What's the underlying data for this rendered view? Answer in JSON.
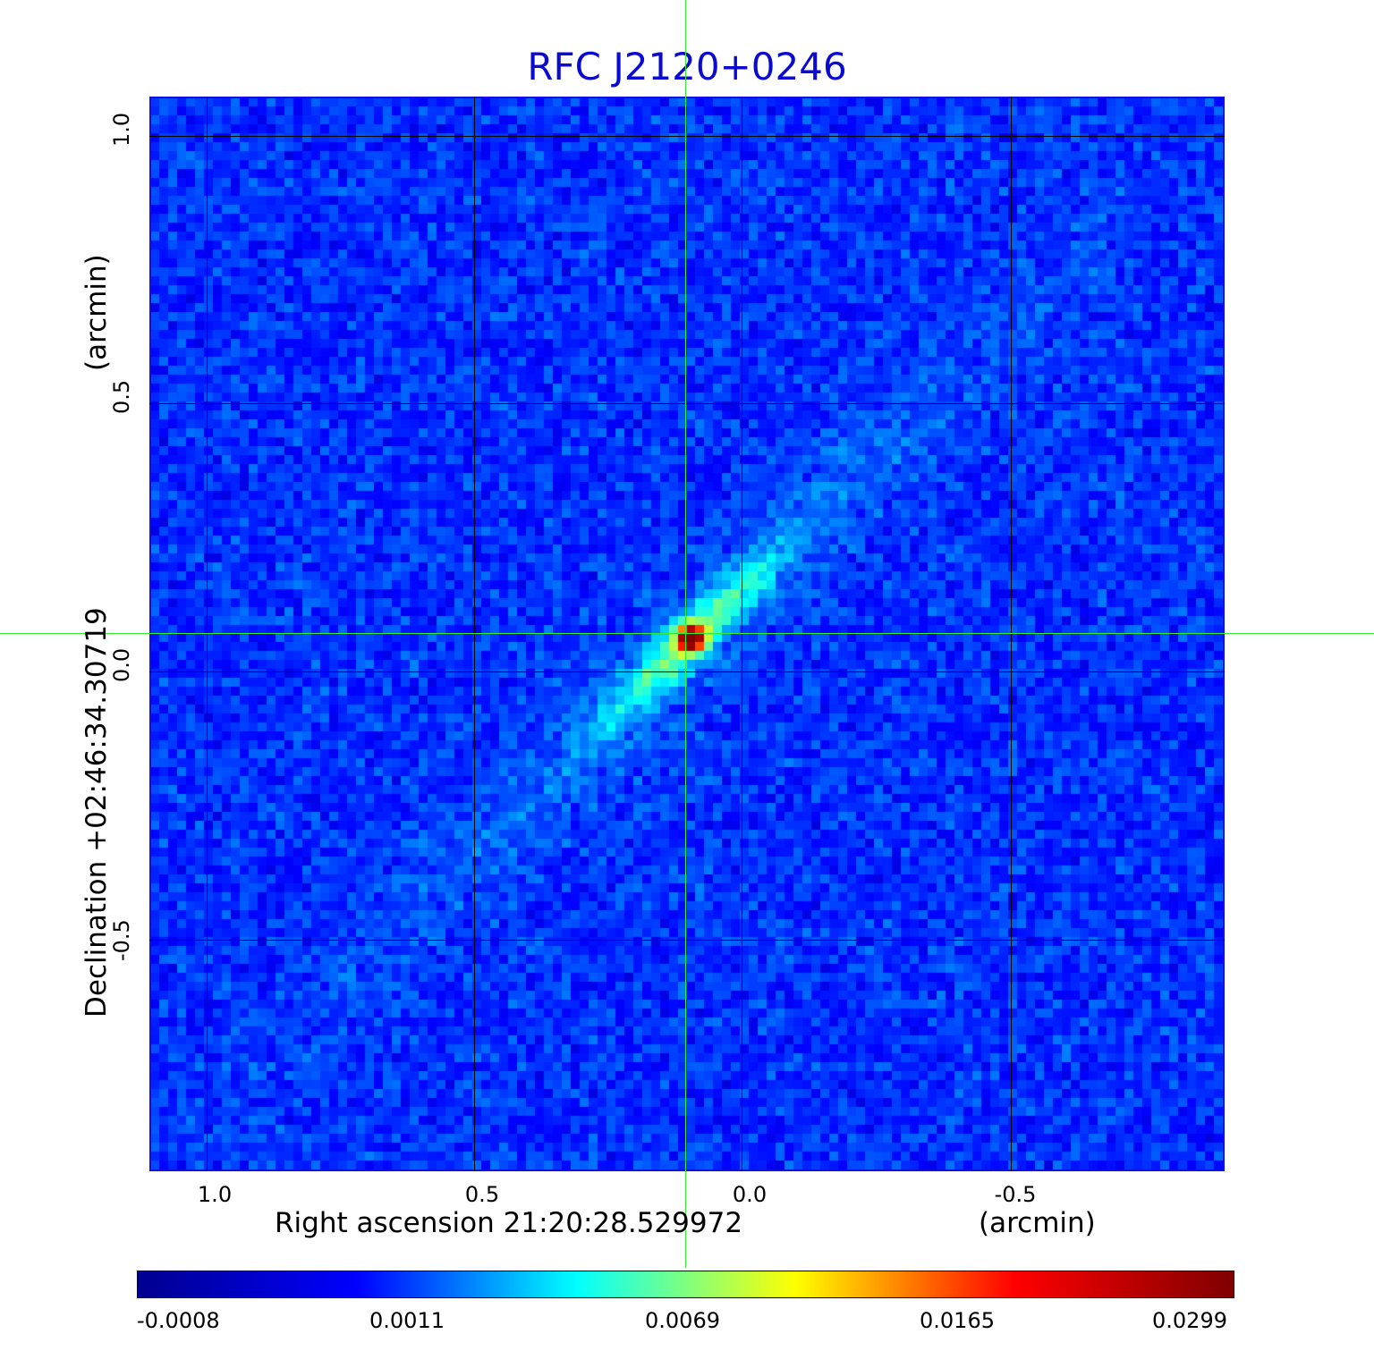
{
  "title": "RFC J2120+0246",
  "xaxis": {
    "label": "Right ascension  21:20:28.529972",
    "unit": "(arcmin)",
    "ticks": [
      "1.0",
      "0.5",
      "0.0",
      "-0.5"
    ]
  },
  "yaxis": {
    "label": "Declination  +02:46:34.30719",
    "unit": "(arcmin)",
    "ticks": [
      "1.0",
      "0.5",
      "0.0",
      "-0.5"
    ]
  },
  "colorbar": {
    "ticks": [
      "-0.0008",
      "0.0011",
      "0.0069",
      "0.0165",
      "0.0299"
    ],
    "colors": [
      "#00008f",
      "#0000ff",
      "#00ffff",
      "#ffff00",
      "#ff0000",
      "#800000"
    ]
  },
  "image": {
    "description_colors": {
      "background": "#1a4fe8",
      "crosshair": "#33ee33",
      "grid": "#000000",
      "title": "#0a0ad0"
    }
  }
}
